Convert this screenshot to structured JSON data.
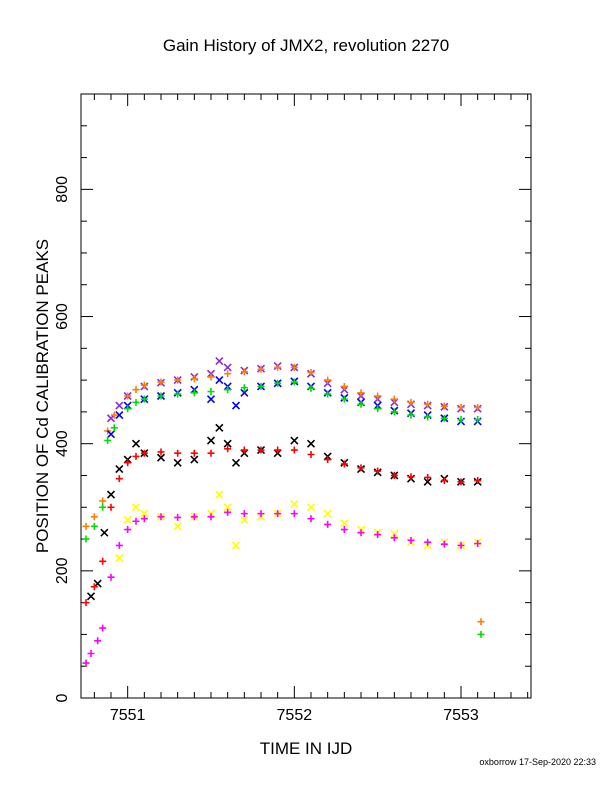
{
  "page": {
    "title": "Gain History of JMX2, revolution 2270",
    "credit": "oxborrow 17-Sep-2020 22:33"
  },
  "chart_data": {
    "type": "scatter",
    "title": "Gain History of JMX2, revolution 2270",
    "xlabel": "TIME IN IJD",
    "ylabel": "POSITION OF Cd CALIBRATION PEAKS",
    "xlim": [
      7550.72,
      7553.42
    ],
    "ylim": [
      0,
      950
    ],
    "xticks": [
      7551,
      7552,
      7553
    ],
    "yticks": [
      0,
      200,
      400,
      600,
      800
    ],
    "grid": false,
    "legend": "none",
    "series": [
      {
        "color": "#8a2be2",
        "marker": "x",
        "points": [
          [
            7550.9,
            440
          ],
          [
            7550.95,
            460
          ],
          [
            7551.0,
            475
          ],
          [
            7551.1,
            490
          ],
          [
            7551.2,
            496
          ],
          [
            7551.3,
            500
          ],
          [
            7551.4,
            505
          ],
          [
            7551.5,
            510
          ],
          [
            7551.55,
            530
          ],
          [
            7551.6,
            520
          ],
          [
            7551.7,
            515
          ],
          [
            7551.8,
            518
          ],
          [
            7551.9,
            522
          ],
          [
            7552.0,
            520
          ],
          [
            7552.1,
            510
          ],
          [
            7552.2,
            495
          ],
          [
            7552.3,
            485
          ],
          [
            7552.4,
            475
          ],
          [
            7552.5,
            470
          ],
          [
            7552.6,
            465
          ],
          [
            7552.7,
            462
          ],
          [
            7552.8,
            460
          ],
          [
            7552.9,
            458
          ],
          [
            7553.0,
            455
          ],
          [
            7553.1,
            455
          ]
        ]
      },
      {
        "color": "#ff7f00",
        "marker": "+",
        "points": [
          [
            7550.75,
            270
          ],
          [
            7550.8,
            285
          ],
          [
            7550.85,
            310
          ],
          [
            7550.88,
            420
          ],
          [
            7550.92,
            445
          ],
          [
            7551.0,
            475
          ],
          [
            7551.05,
            485
          ],
          [
            7551.1,
            492
          ],
          [
            7551.2,
            497
          ],
          [
            7551.3,
            500
          ],
          [
            7551.4,
            502
          ],
          [
            7551.5,
            505
          ],
          [
            7551.6,
            510
          ],
          [
            7551.7,
            513
          ],
          [
            7551.8,
            517
          ],
          [
            7551.9,
            520
          ],
          [
            7552.0,
            520
          ],
          [
            7552.1,
            512
          ],
          [
            7552.2,
            500
          ],
          [
            7552.3,
            490
          ],
          [
            7552.4,
            480
          ],
          [
            7552.5,
            475
          ],
          [
            7552.6,
            470
          ],
          [
            7552.7,
            465
          ],
          [
            7552.8,
            462
          ],
          [
            7552.9,
            459
          ],
          [
            7553.0,
            457
          ],
          [
            7553.1,
            457
          ],
          [
            7553.12,
            120
          ]
        ]
      },
      {
        "color": "#0000ff",
        "marker": "x",
        "points": [
          [
            7550.9,
            415
          ],
          [
            7550.95,
            445
          ],
          [
            7551.0,
            460
          ],
          [
            7551.1,
            470
          ],
          [
            7551.2,
            475
          ],
          [
            7551.3,
            480
          ],
          [
            7551.4,
            485
          ],
          [
            7551.5,
            470
          ],
          [
            7551.55,
            500
          ],
          [
            7551.6,
            490
          ],
          [
            7551.65,
            460
          ],
          [
            7551.7,
            480
          ],
          [
            7551.8,
            490
          ],
          [
            7551.9,
            495
          ],
          [
            7552.0,
            498
          ],
          [
            7552.1,
            490
          ],
          [
            7552.2,
            480
          ],
          [
            7552.3,
            472
          ],
          [
            7552.4,
            465
          ],
          [
            7552.5,
            460
          ],
          [
            7552.6,
            452
          ],
          [
            7552.7,
            448
          ],
          [
            7552.8,
            445
          ],
          [
            7552.9,
            440
          ],
          [
            7553.0,
            435
          ],
          [
            7553.1,
            435
          ]
        ]
      },
      {
        "color": "#00e000",
        "marker": "+",
        "points": [
          [
            7550.75,
            250
          ],
          [
            7550.8,
            270
          ],
          [
            7550.85,
            300
          ],
          [
            7550.88,
            405
          ],
          [
            7550.92,
            425
          ],
          [
            7551.0,
            455
          ],
          [
            7551.05,
            465
          ],
          [
            7551.1,
            470
          ],
          [
            7551.2,
            475
          ],
          [
            7551.3,
            478
          ],
          [
            7551.4,
            480
          ],
          [
            7551.5,
            482
          ],
          [
            7551.6,
            485
          ],
          [
            7551.7,
            488
          ],
          [
            7551.8,
            490
          ],
          [
            7551.9,
            495
          ],
          [
            7552.0,
            497
          ],
          [
            7552.1,
            487
          ],
          [
            7552.2,
            478
          ],
          [
            7552.3,
            470
          ],
          [
            7552.4,
            462
          ],
          [
            7552.5,
            455
          ],
          [
            7552.6,
            450
          ],
          [
            7552.7,
            445
          ],
          [
            7552.8,
            442
          ],
          [
            7552.9,
            440
          ],
          [
            7553.0,
            438
          ],
          [
            7553.1,
            438
          ],
          [
            7553.12,
            100
          ]
        ]
      },
      {
        "color": "#000000",
        "marker": "x",
        "points": [
          [
            7550.78,
            160
          ],
          [
            7550.82,
            180
          ],
          [
            7550.86,
            260
          ],
          [
            7550.9,
            320
          ],
          [
            7550.95,
            360
          ],
          [
            7551.0,
            375
          ],
          [
            7551.05,
            400
          ],
          [
            7551.1,
            385
          ],
          [
            7551.2,
            378
          ],
          [
            7551.3,
            370
          ],
          [
            7551.4,
            375
          ],
          [
            7551.5,
            405
          ],
          [
            7551.55,
            425
          ],
          [
            7551.6,
            400
          ],
          [
            7551.65,
            370
          ],
          [
            7551.7,
            385
          ],
          [
            7551.8,
            390
          ],
          [
            7551.9,
            385
          ],
          [
            7552.0,
            405
          ],
          [
            7552.1,
            400
          ],
          [
            7552.2,
            380
          ],
          [
            7552.3,
            370
          ],
          [
            7552.4,
            360
          ],
          [
            7552.5,
            355
          ],
          [
            7552.6,
            350
          ],
          [
            7552.7,
            345
          ],
          [
            7552.8,
            340
          ],
          [
            7552.9,
            345
          ],
          [
            7553.0,
            340
          ],
          [
            7553.1,
            340
          ]
        ]
      },
      {
        "color": "#ff0000",
        "marker": "+",
        "points": [
          [
            7550.75,
            150
          ],
          [
            7550.8,
            175
          ],
          [
            7550.85,
            215
          ],
          [
            7550.9,
            300
          ],
          [
            7550.95,
            345
          ],
          [
            7551.0,
            370
          ],
          [
            7551.05,
            380
          ],
          [
            7551.1,
            385
          ],
          [
            7551.2,
            387
          ],
          [
            7551.3,
            385
          ],
          [
            7551.4,
            385
          ],
          [
            7551.5,
            385
          ],
          [
            7551.6,
            392
          ],
          [
            7551.7,
            390
          ],
          [
            7551.8,
            390
          ],
          [
            7551.9,
            390
          ],
          [
            7552.0,
            390
          ],
          [
            7552.1,
            383
          ],
          [
            7552.2,
            375
          ],
          [
            7552.3,
            368
          ],
          [
            7552.4,
            362
          ],
          [
            7552.5,
            357
          ],
          [
            7552.6,
            350
          ],
          [
            7552.7,
            348
          ],
          [
            7552.8,
            347
          ],
          [
            7552.9,
            342
          ],
          [
            7553.0,
            340
          ],
          [
            7553.1,
            342
          ]
        ]
      },
      {
        "color": "#ffff00",
        "marker": "x",
        "points": [
          [
            7550.95,
            220
          ],
          [
            7551.0,
            280
          ],
          [
            7551.05,
            300
          ],
          [
            7551.1,
            290
          ],
          [
            7551.2,
            285
          ],
          [
            7551.3,
            270
          ],
          [
            7551.4,
            285
          ],
          [
            7551.5,
            290
          ],
          [
            7551.55,
            320
          ],
          [
            7551.6,
            300
          ],
          [
            7551.65,
            240
          ],
          [
            7551.7,
            280
          ],
          [
            7551.8,
            285
          ],
          [
            7551.9,
            290
          ],
          [
            7552.0,
            305
          ],
          [
            7552.1,
            300
          ],
          [
            7552.2,
            290
          ],
          [
            7552.3,
            275
          ],
          [
            7552.4,
            265
          ],
          [
            7552.5,
            260
          ],
          [
            7552.6,
            258
          ],
          [
            7552.7,
            245
          ],
          [
            7552.8,
            240
          ],
          [
            7552.9,
            245
          ],
          [
            7553.0,
            240
          ],
          [
            7553.1,
            245
          ]
        ]
      },
      {
        "color": "#ff00ff",
        "marker": "+",
        "points": [
          [
            7550.75,
            55
          ],
          [
            7550.78,
            70
          ],
          [
            7550.82,
            90
          ],
          [
            7550.85,
            110
          ],
          [
            7550.9,
            190
          ],
          [
            7550.95,
            240
          ],
          [
            7551.0,
            265
          ],
          [
            7551.05,
            278
          ],
          [
            7551.1,
            282
          ],
          [
            7551.2,
            285
          ],
          [
            7551.3,
            284
          ],
          [
            7551.4,
            285
          ],
          [
            7551.5,
            285
          ],
          [
            7551.6,
            292
          ],
          [
            7551.7,
            290
          ],
          [
            7551.8,
            290
          ],
          [
            7551.9,
            290
          ],
          [
            7552.0,
            290
          ],
          [
            7552.1,
            282
          ],
          [
            7552.2,
            273
          ],
          [
            7552.3,
            265
          ],
          [
            7552.4,
            260
          ],
          [
            7552.5,
            257
          ],
          [
            7552.6,
            252
          ],
          [
            7552.7,
            248
          ],
          [
            7552.8,
            245
          ],
          [
            7552.9,
            242
          ],
          [
            7553.0,
            240
          ],
          [
            7553.1,
            243
          ]
        ]
      }
    ]
  }
}
